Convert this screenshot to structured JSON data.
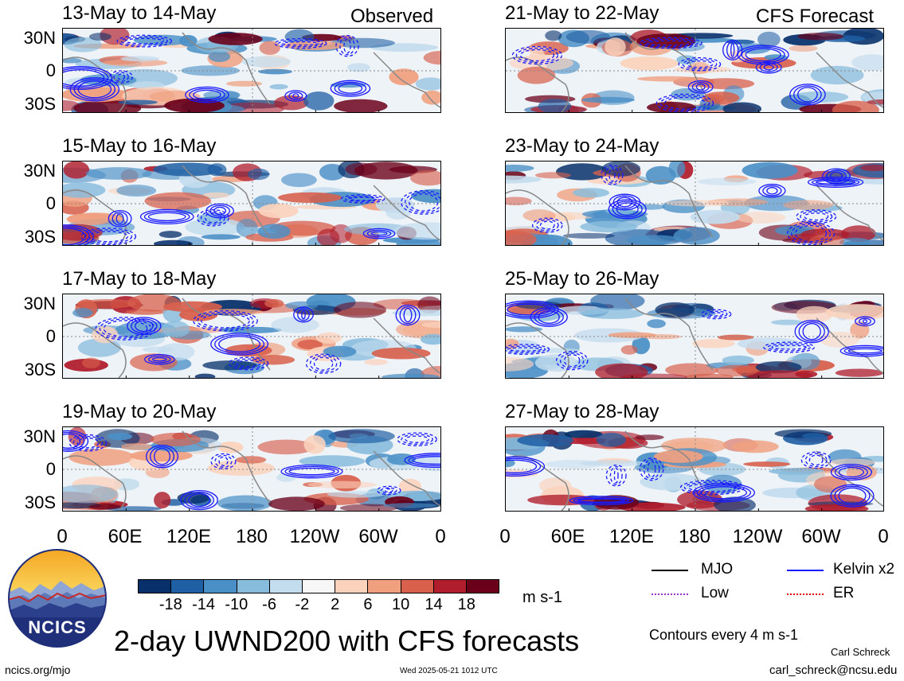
{
  "labels": {
    "observed": "Observed",
    "forecast": "CFS Forecast"
  },
  "panels": [
    {
      "title": "13-May to 14-May"
    },
    {
      "title": "21-May to 22-May"
    },
    {
      "title": "15-May to 16-May"
    },
    {
      "title": "23-May to 24-May"
    },
    {
      "title": "17-May to 18-May"
    },
    {
      "title": "25-May to 26-May"
    },
    {
      "title": "19-May to 20-May"
    },
    {
      "title": "27-May to 28-May"
    }
  ],
  "lat_ticks": [
    "30N",
    "0",
    "30S"
  ],
  "lon_ticks": [
    "0",
    "60E",
    "120E",
    "180",
    "120W",
    "60W",
    "0"
  ],
  "colorbar": {
    "labels": [
      "-18",
      "-14",
      "-10",
      "-6",
      "-2",
      "2",
      "6",
      "10",
      "14",
      "18"
    ],
    "colors": [
      "#08306b",
      "#1f5fa4",
      "#4a8fc6",
      "#88bcdd",
      "#c3dcee",
      "#f7f7f7",
      "#fbd3bd",
      "#f0a07f",
      "#d8604c",
      "#b01d2c",
      "#6a0019"
    ],
    "units": "m s-1"
  },
  "legend": {
    "mjo": "MJO",
    "kelvin": "Kelvin x2",
    "low": "Low",
    "er": "ER",
    "contours_note": "Contours every 4 m s-1",
    "colors": {
      "mjo": "#000000",
      "kelvin": "#1a1aff",
      "low": "#9932cc",
      "er": "#e00000"
    }
  },
  "footer": {
    "title": "2-day UWND200 with CFS forecasts",
    "logo_text": "NCICS",
    "url": "ncics.org/mjo",
    "timestamp": "Wed 2025-05-21 1012 UTC",
    "author": "Carl Schreck",
    "email": "carl_schreck@ncsu.edu"
  }
}
